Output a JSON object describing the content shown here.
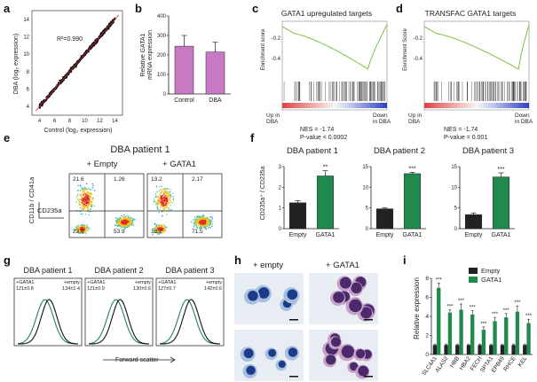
{
  "panel_letters": [
    "a",
    "b",
    "c",
    "d",
    "e",
    "f",
    "g",
    "h",
    "i"
  ],
  "panel_a": {
    "ylabel": "DBA (log₂ expression)",
    "xlabel": "Control (log₂ expression)",
    "r2": "R²=0.990",
    "xticks": [
      "4",
      "6",
      "8",
      "10",
      "12",
      "14"
    ],
    "yticks": [
      "4",
      "6",
      "8",
      "10",
      "12",
      "14"
    ]
  },
  "panel_b": {
    "ylabel_line1": "Relative  GATA1",
    "ylabel_line2": "mRNA expression",
    "yticks": [
      "0",
      "100",
      "200",
      "300",
      "400"
    ]
  },
  "panel_c": {
    "title": "GATA1 upregulated targets",
    "ylabel": "Enrichment score",
    "ticks": [
      "-0.2",
      "-0.4"
    ],
    "left_label_line1": "Up in",
    "left_label_line2": "DBA",
    "right_label_line1": "Down",
    "right_label_line2": "in DBA",
    "nes": "NES = -1.74",
    "pval": "P-value < 0.0002"
  },
  "panel_d": {
    "title": "TRANSFAC GATA1 targets",
    "ylabel": "Enrichment Score",
    "ticks": [
      "-0.2",
      "-0.4"
    ],
    "left_label_line1": "Up in",
    "left_label_line2": "DBA",
    "right_label_line1": "Down",
    "right_label_line2": "in DBA",
    "nes": "NES = -1.74",
    "pval": "P-value = 0.001"
  },
  "panel_e": {
    "title": "DBA patient 1",
    "cond1": "+ Empty",
    "cond2": "+ GATA1",
    "yaxis": "CD11b / CD41a",
    "xaxis": "CD235a",
    "plot1": {
      "tl": "21.6",
      "tr": "1.26",
      "bl": "23.3",
      "br": "53.9"
    },
    "plot2": {
      "tl": "13.2",
      "tr": "2.17",
      "bl": "13.2",
      "br": "71.5"
    }
  },
  "panel_g": {
    "xlabel": "Forward scatter",
    "plots": [
      {
        "title": "DBA patient 1",
        "gata_label": "+GATA1",
        "gata_val": "121±0.8",
        "empty_label": "+empty",
        "empty_val": "134±1.4"
      },
      {
        "title": "DBA patient 2",
        "gata_label": "+GATA1",
        "gata_val": "121±0.9",
        "empty_label": "+empty",
        "empty_val": "130±0.6"
      },
      {
        "title": "DBA patient 3",
        "gata_label": "+GATA1",
        "gata_val": "127±0.7",
        "empty_label": "+empty",
        "empty_val": "142±0.6"
      }
    ]
  },
  "panel_h": {
    "label_left": "+ empty",
    "label_right": "+ GATA1"
  },
  "colors": {
    "purple": "#c779c4",
    "green": "#1f8a4c",
    "dark": "#222222",
    "gsea_line": "#7cc242"
  },
  "chart_data": [
    {
      "type": "scatter",
      "panel": "a",
      "xlabel": "Control (log₂ expression)",
      "ylabel": "DBA (log₂ expression)",
      "xlim": [
        3,
        15
      ],
      "ylim": [
        3,
        15
      ],
      "annotation": "R²=0.990"
    },
    {
      "type": "bar",
      "panel": "b",
      "categories": [
        "Control",
        "DBA"
      ],
      "values": [
        245,
        215
      ],
      "errors": [
        55,
        50
      ],
      "ylim": [
        0,
        400
      ],
      "ylabel": "Relative  GATA1 mRNA expression"
    },
    {
      "type": "bar",
      "panel": "f",
      "title": "DBA patient 1",
      "categories": [
        "Empty",
        "GATA1"
      ],
      "values": [
        1.25,
        2.55
      ],
      "errors": [
        0.1,
        0.25
      ],
      "ylim": [
        0,
        3
      ],
      "yticks": [
        "0",
        "1",
        "2",
        "3"
      ],
      "ylabel": "CD235a⁺ / CD235a",
      "sig": [
        "",
        "**"
      ]
    },
    {
      "type": "bar",
      "panel": "f",
      "title": "DBA patient 2",
      "categories": [
        "Empty",
        "GATA1"
      ],
      "values": [
        4.8,
        13.3
      ],
      "errors": [
        0.2,
        0.3
      ],
      "ylim": [
        0,
        15
      ],
      "yticks": [
        "0",
        "5",
        "10",
        "15"
      ],
      "sig": [
        "",
        "***"
      ]
    },
    {
      "type": "bar",
      "panel": "f",
      "title": "DBA patient 3",
      "categories": [
        "Empty",
        "GATA1"
      ],
      "values": [
        3.4,
        12.5
      ],
      "errors": [
        0.4,
        1.0
      ],
      "ylim": [
        0,
        15
      ],
      "yticks": [
        "0",
        "5",
        "10",
        "15"
      ],
      "sig": [
        "",
        "***"
      ]
    },
    {
      "type": "bar",
      "panel": "i",
      "categories": [
        "SLC4A1",
        "ALAS2",
        "HBB",
        "HBA2",
        "FECH",
        "SPTA1",
        "EPB49",
        "RHCE",
        "KEL"
      ],
      "series": [
        {
          "name": "Empty",
          "values": [
            1,
            1,
            1,
            1,
            1,
            1,
            1,
            1,
            1
          ],
          "errors": [
            0.1,
            0.1,
            0.1,
            0.1,
            0.1,
            0.1,
            0.1,
            0.1,
            0.1
          ]
        },
        {
          "name": "GATA1",
          "values": [
            7.0,
            4.4,
            4.7,
            4.2,
            2.6,
            3.5,
            3.9,
            4.5,
            3.3
          ],
          "errors": [
            0.5,
            0.3,
            0.6,
            0.4,
            0.3,
            0.4,
            0.4,
            0.6,
            0.4
          ]
        }
      ],
      "sig": [
        "***",
        "***",
        "***",
        "***",
        "***",
        "***",
        "***",
        "***",
        "***"
      ],
      "ylim": [
        0,
        8
      ],
      "yticks": [
        "0",
        "2",
        "4",
        "6",
        "8"
      ],
      "ylabel": "Relative expression",
      "legend": "top-right"
    }
  ]
}
